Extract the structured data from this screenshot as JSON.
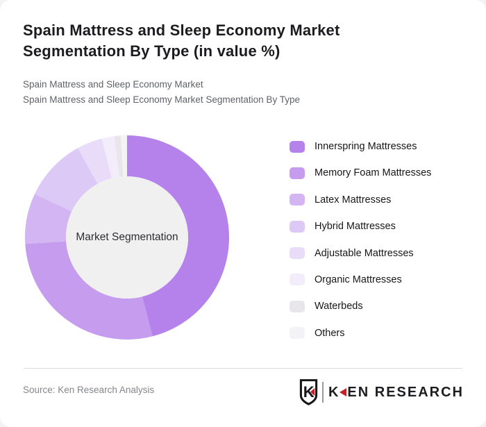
{
  "header": {
    "title_line1": "Spain Mattress and Sleep Economy Market",
    "title_line2": "Segmentation By Type (in value %)",
    "subtitle1": "Spain Mattress and Sleep Economy Market",
    "subtitle2": "Spain Mattress and Sleep Economy Market Segmentation By Type"
  },
  "chart_data": {
    "type": "pie",
    "variant": "donut",
    "title": "Spain Mattress and Sleep Economy Market Segmentation By Type (in value %)",
    "center_label": "Market Segmentation",
    "categories": [
      "Innerspring Mattresses",
      "Memory Foam Mattresses",
      "Latex Mattresses",
      "Hybrid Mattresses",
      "Adjustable Mattresses",
      "Organic Mattresses",
      "Waterbeds",
      "Others"
    ],
    "values": [
      46,
      28,
      8,
      10,
      4,
      2,
      1,
      1
    ],
    "unit": "% of market value",
    "colors": [
      "#b482ea",
      "#c69cef",
      "#d2b5f2",
      "#ddc9f6",
      "#e8dcf9",
      "#f2ecfb",
      "#e8e6ea",
      "#f3f2f4"
    ],
    "center_fill": "#f0f0f0",
    "start_angle_deg": 0,
    "direction": "clockwise",
    "inner_radius_ratio": 0.6,
    "legend_position": "right",
    "data_labels": "none"
  },
  "footer": {
    "source": "Source: Ken Research Analysis",
    "logo": {
      "badge_letter": "K",
      "brand_k": "K",
      "brand_rest": "EN RESEARCH",
      "red": "#c42127"
    }
  }
}
